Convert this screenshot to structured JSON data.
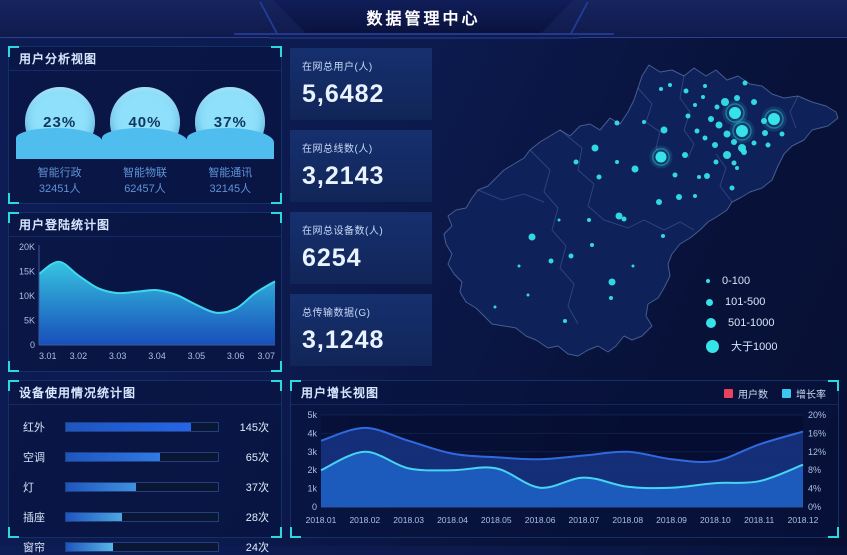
{
  "header": {
    "title": "数据管理中心"
  },
  "panels": {
    "user_analysis": {
      "title": "用户分析视图",
      "items": [
        {
          "percent": "23%",
          "label": "智能行政",
          "count": "32451人"
        },
        {
          "percent": "40%",
          "label": "智能物联",
          "count": "62457人"
        },
        {
          "percent": "37%",
          "label": "智能通讯",
          "count": "32145人"
        }
      ]
    },
    "login_stats": {
      "title": "用户登陆统计图"
    },
    "device_usage": {
      "title": "设备使用情况统计图"
    },
    "user_growth": {
      "title": "用户增长视图",
      "legend": [
        {
          "label": "用户数",
          "color": "#e8435a"
        },
        {
          "label": "增长率",
          "color": "#3bc8ee"
        }
      ]
    }
  },
  "stats": [
    {
      "label": "在网总用户(人)",
      "value": "5,6482"
    },
    {
      "label": "在网总线数(人)",
      "value": "3,2143"
    },
    {
      "label": "在网总设备数(人)",
      "value": "6254"
    },
    {
      "label": "总传输数据(G)",
      "value": "3,1248"
    }
  ],
  "map": {
    "dot_color": "#35e3e8",
    "legend": [
      {
        "label": "0-100",
        "r": 2
      },
      {
        "label": "101-500",
        "r": 3.5
      },
      {
        "label": "501-1000",
        "r": 5
      },
      {
        "label": "大于1000",
        "r": 6.5
      }
    ],
    "dots": [
      [
        229,
        49,
        2
      ],
      [
        238,
        45,
        2
      ],
      [
        254,
        51,
        2.5
      ],
      [
        273,
        46,
        2
      ],
      [
        271,
        57,
        2
      ],
      [
        285,
        67,
        2.5
      ],
      [
        293,
        62,
        4
      ],
      [
        305,
        58,
        3
      ],
      [
        313,
        43,
        2.5
      ],
      [
        322,
        62,
        3
      ],
      [
        332,
        81,
        3
      ],
      [
        333,
        93,
        3
      ],
      [
        350,
        94,
        2.5
      ],
      [
        279,
        79,
        3
      ],
      [
        287,
        85,
        3.5
      ],
      [
        295,
        94,
        3.5
      ],
      [
        302,
        102,
        3
      ],
      [
        310,
        108,
        4
      ],
      [
        283,
        105,
        3
      ],
      [
        273,
        98,
        2.5
      ],
      [
        265,
        91,
        2.5
      ],
      [
        256,
        76,
        2.5
      ],
      [
        263,
        65,
        2
      ],
      [
        295,
        115,
        4
      ],
      [
        284,
        122,
        2.5
      ],
      [
        302,
        123,
        2.5
      ],
      [
        312,
        112,
        3
      ],
      [
        322,
        103,
        2.5
      ],
      [
        336,
        105,
        2.5
      ],
      [
        253,
        115,
        3
      ],
      [
        243,
        135,
        2.5
      ],
      [
        267,
        137,
        2
      ],
      [
        275,
        136,
        3
      ],
      [
        300,
        148,
        2.5
      ],
      [
        305,
        128,
        2
      ],
      [
        185,
        83,
        2.5
      ],
      [
        212,
        82,
        2
      ],
      [
        232,
        90,
        3.5
      ],
      [
        163,
        108,
        3.5
      ],
      [
        144,
        122,
        2.5
      ],
      [
        167,
        137,
        2.5
      ],
      [
        203,
        129,
        3.5
      ],
      [
        185,
        122,
        2
      ],
      [
        247,
        157,
        3
      ],
      [
        263,
        156,
        2
      ],
      [
        227,
        162,
        3
      ],
      [
        187,
        176,
        3.5
      ],
      [
        192,
        179,
        2.5
      ],
      [
        157,
        180,
        2
      ],
      [
        127,
        180,
        1.5
      ],
      [
        100,
        197,
        3.5
      ],
      [
        119,
        221,
        2.5
      ],
      [
        139,
        216,
        2.5
      ],
      [
        87,
        226,
        1.5
      ],
      [
        180,
        242,
        3.5
      ],
      [
        179,
        258,
        2
      ],
      [
        201,
        226,
        1.5
      ],
      [
        231,
        196,
        2
      ],
      [
        63,
        267,
        1.5
      ],
      [
        133,
        281,
        2
      ],
      [
        160,
        205,
        2
      ],
      [
        96,
        255,
        1.5
      ]
    ],
    "glow_dots": [
      [
        303,
        73,
        6
      ],
      [
        342,
        79,
        6
      ],
      [
        310,
        91,
        6
      ],
      [
        229,
        117,
        5.5
      ]
    ]
  },
  "chart_data": [
    {
      "type": "area",
      "name": "login_trend",
      "title": "用户登陆统计图",
      "x_labels": [
        "3.01",
        "3.02",
        "3.03",
        "3.04",
        "3.05",
        "3.06",
        "3.07"
      ],
      "points": [
        [
          0,
          14.5
        ],
        [
          0.5,
          17
        ],
        [
          1,
          14.2
        ],
        [
          1.5,
          11.6
        ],
        [
          2,
          10.6
        ],
        [
          2.5,
          10.9
        ],
        [
          3,
          11.2
        ],
        [
          3.5,
          10.2
        ],
        [
          4,
          8.2
        ],
        [
          4.5,
          6.6
        ],
        [
          5,
          7.4
        ],
        [
          5.5,
          10.6
        ],
        [
          6,
          13
        ]
      ],
      "values_at_labels": [
        14.5,
        14.2,
        10.6,
        11.2,
        8.2,
        7.4,
        13
      ],
      "unit": "K",
      "y_ticks": [
        "0",
        "5K",
        "10K",
        "15K",
        "20K"
      ],
      "y_tick_values": [
        0,
        5,
        10,
        15,
        20
      ],
      "ylim": [
        0,
        20
      ],
      "line_color": "#3fd9ef",
      "fill_top": "#38cfe8",
      "fill_bottom": "#1a55c8"
    },
    {
      "type": "bar",
      "name": "device_usage",
      "title": "设备使用情况统计图",
      "categories": [
        "红外",
        "空调",
        "灯",
        "插座",
        "窗帘"
      ],
      "values": [
        145,
        65,
        37,
        28,
        24
      ],
      "unit": "次",
      "percent": [
        82,
        62,
        46,
        37,
        31
      ],
      "bar_colors": [
        "#2566e8",
        "#2f7ae4",
        "#3f93de",
        "#4ea6e0",
        "#58b5e6"
      ]
    },
    {
      "type": "area-line",
      "name": "user_growth",
      "title": "用户增长视图",
      "x_labels": [
        "2018.01",
        "2018.02",
        "2018.03",
        "2018.04",
        "2018.05",
        "2018.06",
        "2018.07",
        "2018.08",
        "2018.09",
        "2018.10",
        "2018.11",
        "2018.12"
      ],
      "series": [
        {
          "name": "用户数",
          "axis": "left",
          "values": [
            3.6,
            4.3,
            3.6,
            2.9,
            2.7,
            2.6,
            2.8,
            3.0,
            2.6,
            2.5,
            3.4,
            4.1
          ],
          "line_color": "#2f6ae0",
          "fill_color": "#16307c"
        },
        {
          "name": "增长率",
          "axis": "right",
          "values": [
            8,
            12,
            8.4,
            8,
            8.4,
            4.2,
            6.4,
            4.4,
            4.2,
            5.2,
            5.6,
            9.2
          ],
          "line_color": "#46d4f2",
          "fill_color": "#1d5ec2"
        }
      ],
      "left_ticks": [
        "0",
        "1k",
        "2k",
        "3k",
        "4k",
        "5k"
      ],
      "left_tick_values": [
        0,
        1,
        2,
        3,
        4,
        5
      ],
      "right_ticks": [
        "0%",
        "4%",
        "8%",
        "12%",
        "16%",
        "20%"
      ],
      "right_tick_values": [
        0,
        4,
        8,
        12,
        16,
        20
      ],
      "ylim_left": [
        0,
        5
      ],
      "ylim_right": [
        0,
        20
      ],
      "grid": true,
      "legend_position": "top-right"
    }
  ]
}
